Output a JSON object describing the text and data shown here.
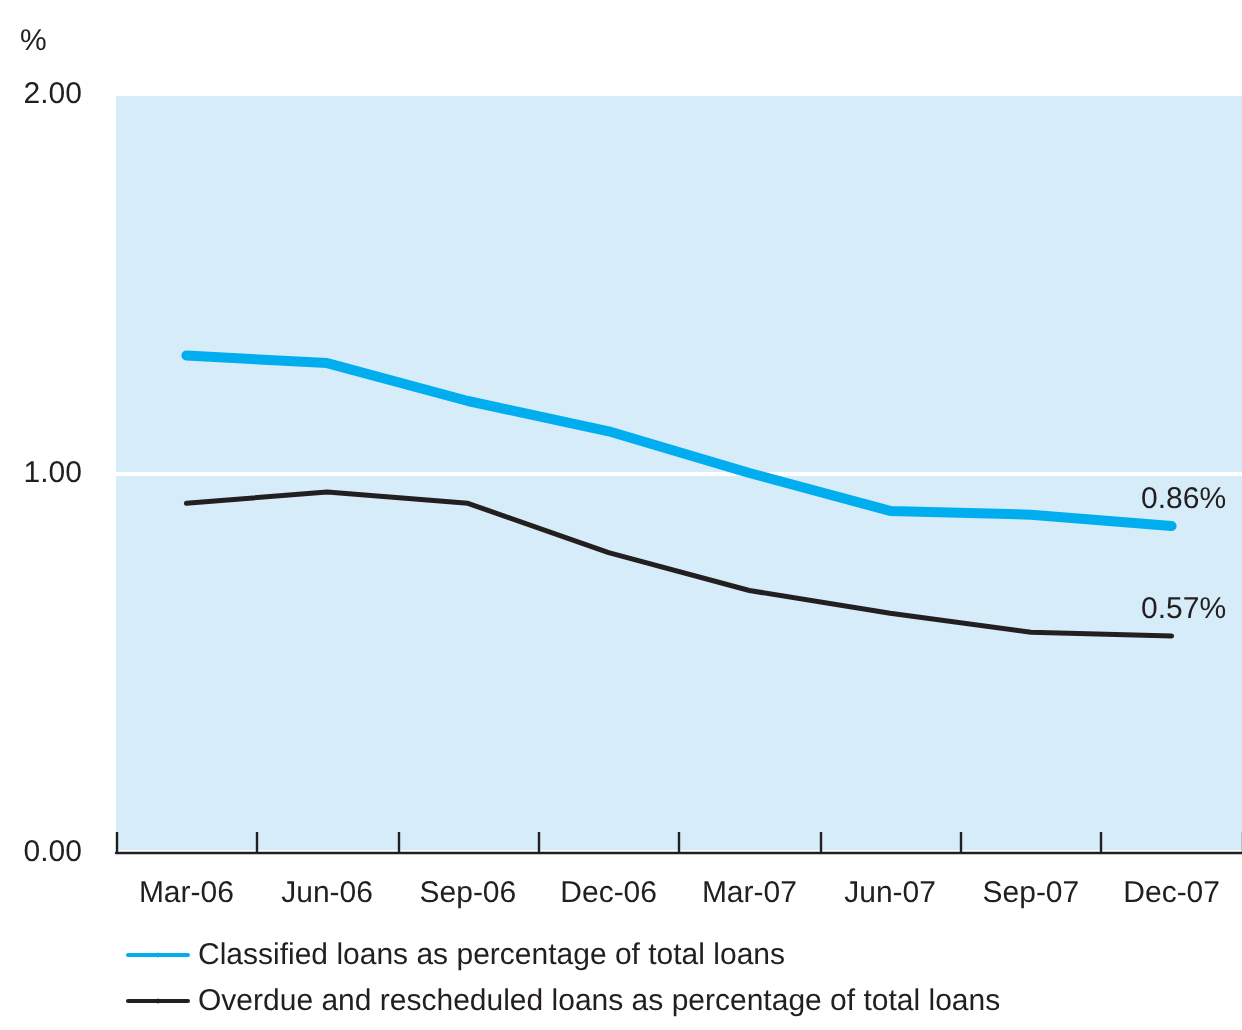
{
  "chart_data": {
    "type": "line",
    "ylabel": "%",
    "categories": [
      "Mar-06",
      "Jun-06",
      "Sep-06",
      "Dec-06",
      "Mar-07",
      "Jun-07",
      "Sep-07",
      "Dec-07"
    ],
    "series": [
      {
        "name": "Classified loans as percentage of total loans",
        "color": "#00aeef",
        "values": [
          1.31,
          1.29,
          1.19,
          1.11,
          1.0,
          0.9,
          0.89,
          0.86
        ],
        "value_labels": [
          null,
          null,
          null,
          null,
          null,
          null,
          null,
          "0.86%"
        ]
      },
      {
        "name": "Overdue and rescheduled loans as percentage of total loans",
        "color": "#231f20",
        "values": [
          0.92,
          0.95,
          0.92,
          0.79,
          0.69,
          0.63,
          0.58,
          0.57
        ],
        "value_labels": [
          null,
          null,
          null,
          null,
          null,
          null,
          null,
          "0.57%"
        ]
      }
    ],
    "ylim": [
      0,
      2
    ],
    "yticks": [
      {
        "value": 0,
        "label": "0.00"
      },
      {
        "value": 1,
        "label": "1.00"
      },
      {
        "value": 2,
        "label": "2.00"
      }
    ],
    "grid": "y",
    "legend": "bottom left",
    "marker": "none",
    "line_style": "solid"
  }
}
